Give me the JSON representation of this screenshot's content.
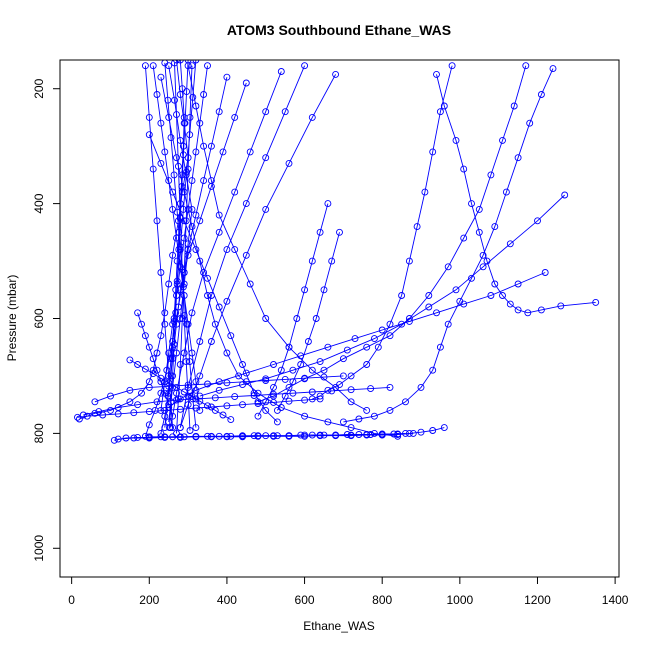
{
  "chart_data": {
    "type": "line",
    "title": "ATOM3 Southbound Ethane_WAS",
    "xlabel": "Ethane_WAS",
    "ylabel": "Pressure (mbar)",
    "xlim": [
      -30,
      1410
    ],
    "ylim": [
      1050,
      150
    ],
    "y_reversed": true,
    "grid": false,
    "x_ticks": [
      0,
      200,
      400,
      600,
      800,
      1000,
      1200,
      1400
    ],
    "y_ticks": [
      200,
      400,
      600,
      800,
      1000
    ],
    "series_color": "#0000ff",
    "marker": "open-circle",
    "series": [
      {
        "x": [
          270,
          280,
          290,
          300,
          285,
          275,
          260,
          250,
          240,
          230,
          220,
          210,
          200,
          180,
          150,
          100,
          60,
          20
        ],
        "y": [
          150,
          210,
          260,
          320,
          380,
          430,
          490,
          540,
          590,
          630,
          660,
          690,
          710,
          730,
          745,
          760,
          765,
          775
        ]
      },
      {
        "x": [
          250,
          265,
          280,
          295,
          310,
          300,
          290,
          275,
          260,
          245,
          230,
          215,
          200,
          190
        ],
        "y": [
          160,
          220,
          290,
          350,
          410,
          470,
          520,
          580,
          640,
          690,
          730,
          760,
          785,
          805
        ]
      },
      {
        "x": [
          300,
          320,
          340,
          360,
          380,
          420,
          460,
          500,
          560,
          620,
          680,
          720,
          760
        ],
        "y": [
          160,
          230,
          300,
          360,
          420,
          480,
          540,
          600,
          650,
          690,
          720,
          745,
          760
        ]
      },
      {
        "x": [
          230,
          250,
          270,
          290,
          310,
          330,
          350,
          370,
          400,
          430,
          480,
          540,
          600,
          660,
          720,
          780,
          840
        ],
        "y": [
          180,
          250,
          320,
          380,
          440,
          500,
          560,
          610,
          660,
          700,
          730,
          755,
          770,
          780,
          790,
          800,
          805
        ]
      },
      {
        "x": [
          940,
          960,
          990,
          1010,
          1030,
          1050,
          1070,
          1090,
          1110,
          1130,
          1150,
          1175,
          1210,
          1260,
          1350
        ],
        "y": [
          175,
          230,
          290,
          340,
          400,
          450,
          500,
          540,
          560,
          575,
          585,
          590,
          585,
          578,
          572
        ]
      },
      {
        "x": [
          1170,
          1140,
          1110,
          1080,
          1050,
          1010,
          970,
          920,
          870,
          820,
          760,
          700,
          650,
          600,
          560,
          520,
          480
        ],
        "y": [
          160,
          230,
          290,
          350,
          410,
          460,
          510,
          560,
          600,
          630,
          650,
          670,
          690,
          705,
          720,
          735,
          745
        ]
      },
      {
        "x": [
          1240,
          1210,
          1180,
          1150,
          1120,
          1090,
          1060,
          1030,
          1000,
          970,
          950,
          930,
          900,
          860,
          820,
          780,
          740,
          700
        ],
        "y": [
          165,
          210,
          260,
          320,
          380,
          440,
          490,
          530,
          570,
          610,
          650,
          690,
          720,
          745,
          760,
          770,
          775,
          780
        ]
      },
      {
        "x": [
          980,
          950,
          930,
          910,
          890,
          870,
          850,
          820,
          790,
          760,
          720,
          690,
          660,
          640,
          620
        ],
        "y": [
          160,
          240,
          310,
          380,
          440,
          500,
          560,
          610,
          650,
          680,
          700,
          715,
          725,
          735,
          740
        ]
      },
      {
        "x": [
          1270,
          1200,
          1130,
          1060,
          990,
          920,
          850,
          780,
          710,
          640,
          570,
          500,
          440,
          380,
          330
        ],
        "y": [
          385,
          430,
          470,
          510,
          550,
          580,
          610,
          635,
          655,
          675,
          690,
          705,
          715,
          725,
          735
        ]
      },
      {
        "x": [
          1220,
          1150,
          1080,
          1010,
          940,
          870,
          800,
          730,
          660,
          590,
          520,
          450,
          380,
          320,
          280,
          250
        ],
        "y": [
          520,
          540,
          560,
          575,
          590,
          605,
          620,
          635,
          650,
          665,
          680,
          695,
          710,
          725,
          740,
          755
        ]
      },
      {
        "x": [
          960,
          930,
          900,
          870,
          840,
          800,
          760,
          720,
          680,
          640,
          600,
          560,
          520,
          480,
          440,
          400,
          360,
          320,
          280,
          240,
          200
        ],
        "y": [
          790,
          795,
          798,
          800,
          801,
          802,
          802,
          803,
          803,
          803,
          803,
          804,
          804,
          804,
          804,
          805,
          805,
          805,
          806,
          806,
          806
        ]
      },
      {
        "x": [
          880,
          840,
          800,
          760,
          720,
          680,
          640,
          600,
          560,
          520,
          480,
          440,
          400,
          360,
          320,
          280,
          240,
          200,
          160,
          120
        ],
        "y": [
          800,
          802,
          803,
          803,
          804,
          804,
          804,
          805,
          805,
          805,
          805,
          806,
          806,
          806,
          806,
          807,
          807,
          808,
          808,
          810
        ]
      },
      {
        "x": [
          860,
          830,
          800,
          770,
          740,
          710,
          680,
          650,
          620,
          590,
          560,
          530,
          500,
          470,
          440,
          410,
          380,
          350,
          320,
          290,
          260,
          230,
          200,
          170,
          140,
          110
        ],
        "y": [
          800,
          801,
          801,
          802,
          802,
          802,
          803,
          803,
          803,
          803,
          804,
          804,
          804,
          804,
          805,
          805,
          805,
          805,
          806,
          806,
          806,
          806,
          807,
          807,
          808,
          812
        ]
      },
      {
        "x": [
          640,
          600,
          560,
          520,
          480,
          440,
          400,
          360,
          320,
          280,
          240,
          200,
          160,
          120,
          80,
          40,
          15
        ],
        "y": [
          740,
          742,
          744,
          746,
          748,
          750,
          752,
          754,
          756,
          758,
          760,
          762,
          764,
          766,
          768,
          770,
          772
        ]
      },
      {
        "x": [
          820,
          770,
          720,
          670,
          620,
          570,
          520,
          470,
          420,
          370,
          320,
          270,
          220,
          170,
          120,
          70,
          30
        ],
        "y": [
          720,
          722,
          724,
          726,
          728,
          730,
          732,
          734,
          736,
          738,
          740,
          742,
          745,
          750,
          755,
          762,
          768
        ]
      },
      {
        "x": [
          700,
          650,
          600,
          550,
          500,
          450,
          400,
          350,
          300,
          250,
          200,
          150,
          100,
          60
        ],
        "y": [
          700,
          702,
          704,
          706,
          708,
          710,
          712,
          714,
          716,
          718,
          720,
          725,
          735,
          745
        ]
      },
      {
        "x": [
          150,
          170,
          190,
          210,
          230,
          250,
          270,
          290,
          310,
          330,
          350,
          370,
          390,
          410
        ],
        "y": [
          672,
          680,
          688,
          696,
          704,
          712,
          720,
          728,
          736,
          744,
          752,
          760,
          768,
          776
        ]
      },
      {
        "x": [
          280,
          285,
          290,
          288,
          284,
          280,
          276,
          272,
          268,
          264,
          260,
          256
        ],
        "y": [
          150,
          200,
          250,
          300,
          350,
          400,
          450,
          500,
          550,
          600,
          650,
          700
        ]
      },
      {
        "x": [
          300,
          296,
          292,
          288,
          284,
          280,
          276,
          272,
          268,
          264,
          260,
          256,
          252
        ],
        "y": [
          150,
          205,
          260,
          315,
          370,
          425,
          480,
          535,
          590,
          645,
          700,
          745,
          790
        ]
      },
      {
        "x": [
          240,
          248,
          256,
          264,
          272,
          280,
          288,
          296,
          304,
          312,
          320
        ],
        "y": [
          155,
          220,
          285,
          350,
          415,
          480,
          545,
          610,
          675,
          740,
          790
        ]
      },
      {
        "x": [
          320,
          312,
          304,
          296,
          288,
          280,
          272,
          264,
          256,
          248,
          240
        ],
        "y": [
          150,
          215,
          280,
          345,
          410,
          475,
          540,
          605,
          670,
          735,
          790
        ]
      },
      {
        "x": [
          350,
          340,
          330,
          320,
          310,
          300,
          290,
          280,
          270,
          260,
          250,
          240,
          230
        ],
        "y": [
          160,
          210,
          260,
          310,
          360,
          410,
          460,
          510,
          560,
          610,
          660,
          710,
          760
        ]
      },
      {
        "x": [
          210,
          220,
          230,
          240,
          250,
          260,
          270,
          280,
          290,
          300,
          310,
          320,
          330
        ],
        "y": [
          160,
          210,
          260,
          310,
          360,
          410,
          460,
          510,
          560,
          610,
          660,
          710,
          760
        ]
      },
      {
        "x": [
          400,
          380,
          360,
          340,
          320,
          300,
          290,
          280,
          270,
          260,
          250
        ],
        "y": [
          180,
          240,
          300,
          360,
          420,
          480,
          540,
          600,
          660,
          720,
          780
        ]
      },
      {
        "x": [
          450,
          420,
          390,
          360,
          330,
          300,
          280,
          270,
          260,
          250,
          240,
          230
        ],
        "y": [
          190,
          250,
          310,
          370,
          430,
          490,
          550,
          610,
          670,
          730,
          770,
          800
        ]
      },
      {
        "x": [
          540,
          500,
          460,
          420,
          380,
          340,
          310,
          290,
          270,
          255
        ],
        "y": [
          170,
          240,
          310,
          380,
          450,
          520,
          590,
          660,
          730,
          790
        ]
      },
      {
        "x": [
          600,
          550,
          500,
          450,
          400,
          360,
          330,
          300,
          280
        ],
        "y": [
          160,
          240,
          320,
          400,
          480,
          560,
          640,
          720,
          790
        ]
      },
      {
        "x": [
          680,
          620,
          560,
          500,
          450,
          400,
          360,
          330,
          300,
          280
        ],
        "y": [
          175,
          250,
          330,
          410,
          490,
          570,
          640,
          700,
          750,
          790
        ]
      },
      {
        "x": [
          200,
          230,
          260,
          290,
          320,
          350,
          380,
          410,
          440,
          470,
          500,
          530
        ],
        "y": [
          280,
          330,
          380,
          430,
          480,
          530,
          580,
          630,
          680,
          730,
          760,
          780
        ]
      },
      {
        "x": [
          660,
          640,
          620,
          600,
          580,
          560,
          540,
          520,
          500,
          480
        ],
        "y": [
          400,
          450,
          500,
          550,
          600,
          650,
          690,
          720,
          745,
          770
        ]
      },
      {
        "x": [
          690,
          670,
          650,
          630,
          610,
          590,
          570,
          550,
          530
        ],
        "y": [
          450,
          500,
          550,
          600,
          640,
          680,
          710,
          735,
          760
        ]
      },
      {
        "x": [
          170,
          180,
          190,
          200,
          210,
          220,
          230,
          240,
          250,
          260
        ],
        "y": [
          590,
          610,
          630,
          650,
          670,
          690,
          710,
          730,
          750,
          770
        ]
      },
      {
        "x": [
          310,
          305,
          300,
          295,
          290,
          285,
          280,
          275,
          270
        ],
        "y": [
          160,
          250,
          340,
          430,
          520,
          600,
          680,
          740,
          800
        ]
      },
      {
        "x": [
          265,
          270,
          275,
          280,
          285,
          290,
          295,
          300,
          305
        ],
        "y": [
          155,
          245,
          335,
          425,
          515,
          595,
          675,
          735,
          795
        ]
      },
      {
        "x": [
          190,
          200,
          210,
          220,
          230,
          240,
          250,
          260
        ],
        "y": [
          160,
          250,
          340,
          430,
          520,
          610,
          700,
          790
        ]
      }
    ]
  }
}
